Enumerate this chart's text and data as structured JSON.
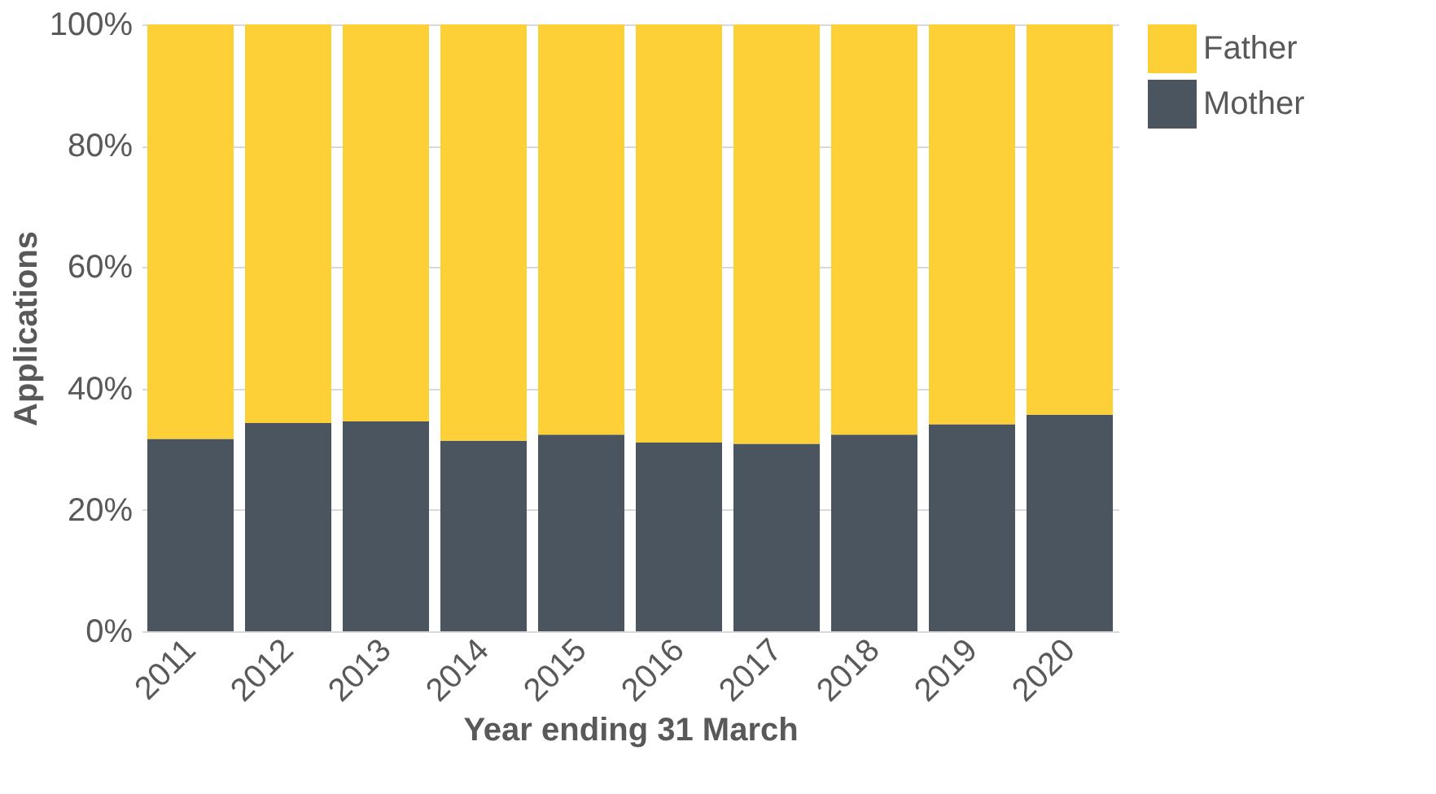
{
  "chart_data": {
    "type": "bar",
    "stacked": true,
    "xlabel": "Year ending 31 March",
    "ylabel": "Applications",
    "categories": [
      "2011",
      "2012",
      "2013",
      "2014",
      "2015",
      "2016",
      "2017",
      "2018",
      "2019",
      "2020"
    ],
    "series": [
      {
        "name": "Mother",
        "color": "#4a5560",
        "values": [
          31.7,
          34.3,
          34.6,
          31.4,
          32.4,
          31.1,
          30.9,
          32.4,
          34.1,
          35.7
        ]
      },
      {
        "name": "Father",
        "color": "#fdd037",
        "values": [
          68.3,
          65.7,
          65.4,
          68.6,
          67.6,
          68.9,
          69.1,
          67.6,
          65.9,
          64.3
        ]
      }
    ],
    "ylim": [
      0,
      100
    ],
    "yticks": [
      {
        "value": 0,
        "label": "0%"
      },
      {
        "value": 20,
        "label": "20%"
      },
      {
        "value": 40,
        "label": "40%"
      },
      {
        "value": 60,
        "label": "60%"
      },
      {
        "value": 80,
        "label": "80%"
      },
      {
        "value": 100,
        "label": "100%"
      }
    ],
    "grid": "y",
    "legend": "right"
  }
}
